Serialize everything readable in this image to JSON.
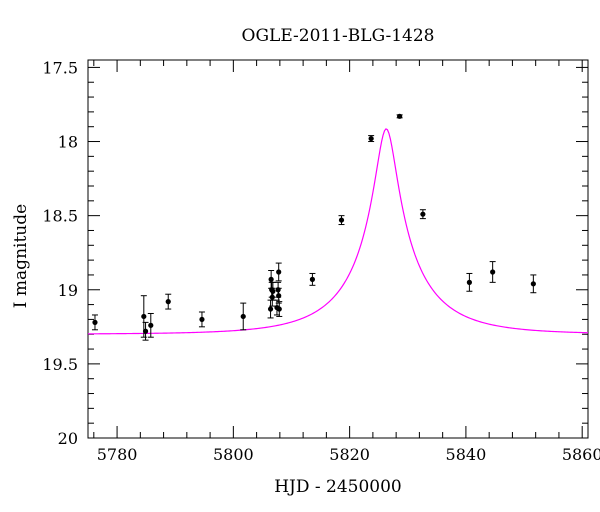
{
  "chart_data": {
    "type": "scatter",
    "title": "OGLE-2011-BLG-1428",
    "xlabel": "HJD - 2450000",
    "ylabel": "I magnitude",
    "xlim": [
      5775,
      5861
    ],
    "ylim": [
      20,
      17.45
    ],
    "y_inverted": true,
    "grid": false,
    "x_ticks": [
      5780,
      5800,
      5820,
      5840,
      5860
    ],
    "x_tick_labels": [
      "5780",
      "5800",
      "5820",
      "5840",
      "5860"
    ],
    "y_ticks": [
      17.5,
      18,
      18.5,
      19,
      19.5,
      20
    ],
    "y_tick_labels": [
      "17.5",
      "18",
      "18.5",
      "19",
      "19.5",
      "20"
    ],
    "model_color": "#ff00ff",
    "point_color": "#000000",
    "model_params": {
      "t0": 5826.3,
      "tE": 12.8,
      "u0": 0.135,
      "baseline": 19.3,
      "blend_fraction": 0.4
    },
    "series": [
      {
        "points": [
          {
            "x": 5776.2,
            "y": 19.22,
            "err": 0.05
          },
          {
            "x": 5784.6,
            "y": 19.18,
            "err": 0.14
          },
          {
            "x": 5784.9,
            "y": 19.28,
            "err": 0.06
          },
          {
            "x": 5785.8,
            "y": 19.24,
            "err": 0.08
          },
          {
            "x": 5788.8,
            "y": 19.08,
            "err": 0.05
          },
          {
            "x": 5794.6,
            "y": 19.2,
            "err": 0.05
          },
          {
            "x": 5801.7,
            "y": 19.18,
            "err": 0.09
          },
          {
            "x": 5806.4,
            "y": 19.13,
            "err": 0.06
          },
          {
            "x": 5806.5,
            "y": 18.93,
            "err": 0.06
          },
          {
            "x": 5806.6,
            "y": 19.0,
            "err": 0.05
          },
          {
            "x": 5806.7,
            "y": 19.05,
            "err": 0.06
          },
          {
            "x": 5806.8,
            "y": 19.01,
            "err": 0.06
          },
          {
            "x": 5807.5,
            "y": 19.12,
            "err": 0.05
          },
          {
            "x": 5807.7,
            "y": 19.0,
            "err": 0.05
          },
          {
            "x": 5807.8,
            "y": 18.88,
            "err": 0.06
          },
          {
            "x": 5807.9,
            "y": 19.13,
            "err": 0.05
          },
          {
            "x": 5807.8,
            "y": 19.04,
            "err": 0.05
          },
          {
            "x": 5813.6,
            "y": 18.93,
            "err": 0.04
          },
          {
            "x": 5818.6,
            "y": 18.53,
            "err": 0.03
          },
          {
            "x": 5823.7,
            "y": 17.98,
            "err": 0.02
          },
          {
            "x": 5828.6,
            "y": 17.83,
            "err": 0.01
          },
          {
            "x": 5832.6,
            "y": 18.49,
            "err": 0.03
          },
          {
            "x": 5840.6,
            "y": 18.95,
            "err": 0.06
          },
          {
            "x": 5844.6,
            "y": 18.88,
            "err": 0.07
          },
          {
            "x": 5851.6,
            "y": 18.96,
            "err": 0.06
          }
        ]
      }
    ]
  }
}
